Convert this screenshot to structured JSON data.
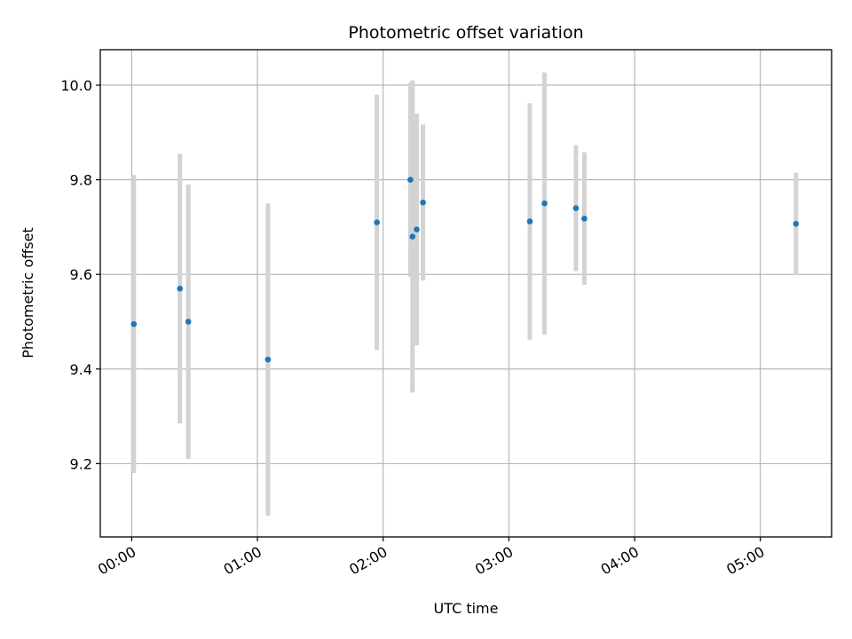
{
  "chart_data": {
    "type": "scatter",
    "title": "Photometric offset variation",
    "xlabel": "UTC time",
    "ylabel": "Photometric offset",
    "x_ticks": [
      "00:00",
      "01:00",
      "02:00",
      "03:00",
      "04:00",
      "05:00"
    ],
    "y_ticks": [
      "9.2",
      "9.4",
      "9.6",
      "9.8",
      "10.0"
    ],
    "xlim": [
      "23:45",
      "05:34"
    ],
    "ylim": [
      9.045,
      10.075
    ],
    "grid": true,
    "marker_color": "#1f77b4",
    "errorbar_color": "#d3d3d3",
    "points": [
      {
        "time": "00:01",
        "y": 9.495,
        "err": 0.315
      },
      {
        "time": "00:23",
        "y": 9.57,
        "err": 0.285
      },
      {
        "time": "00:27",
        "y": 9.5,
        "err": 0.29
      },
      {
        "time": "01:05",
        "y": 9.42,
        "err": 0.33
      },
      {
        "time": "01:57",
        "y": 9.71,
        "err": 0.27
      },
      {
        "time": "02:13",
        "y": 9.8,
        "err": 0.205
      },
      {
        "time": "02:14",
        "y": 9.68,
        "err": 0.33
      },
      {
        "time": "02:16",
        "y": 9.695,
        "err": 0.245
      },
      {
        "time": "02:19",
        "y": 9.752,
        "err": 0.165
      },
      {
        "time": "03:10",
        "y": 9.712,
        "err": 0.25
      },
      {
        "time": "03:17",
        "y": 9.75,
        "err": 0.277
      },
      {
        "time": "03:32",
        "y": 9.74,
        "err": 0.133
      },
      {
        "time": "03:36",
        "y": 9.718,
        "err": 0.14
      },
      {
        "time": "05:17",
        "y": 9.707,
        "err": 0.108
      }
    ]
  }
}
